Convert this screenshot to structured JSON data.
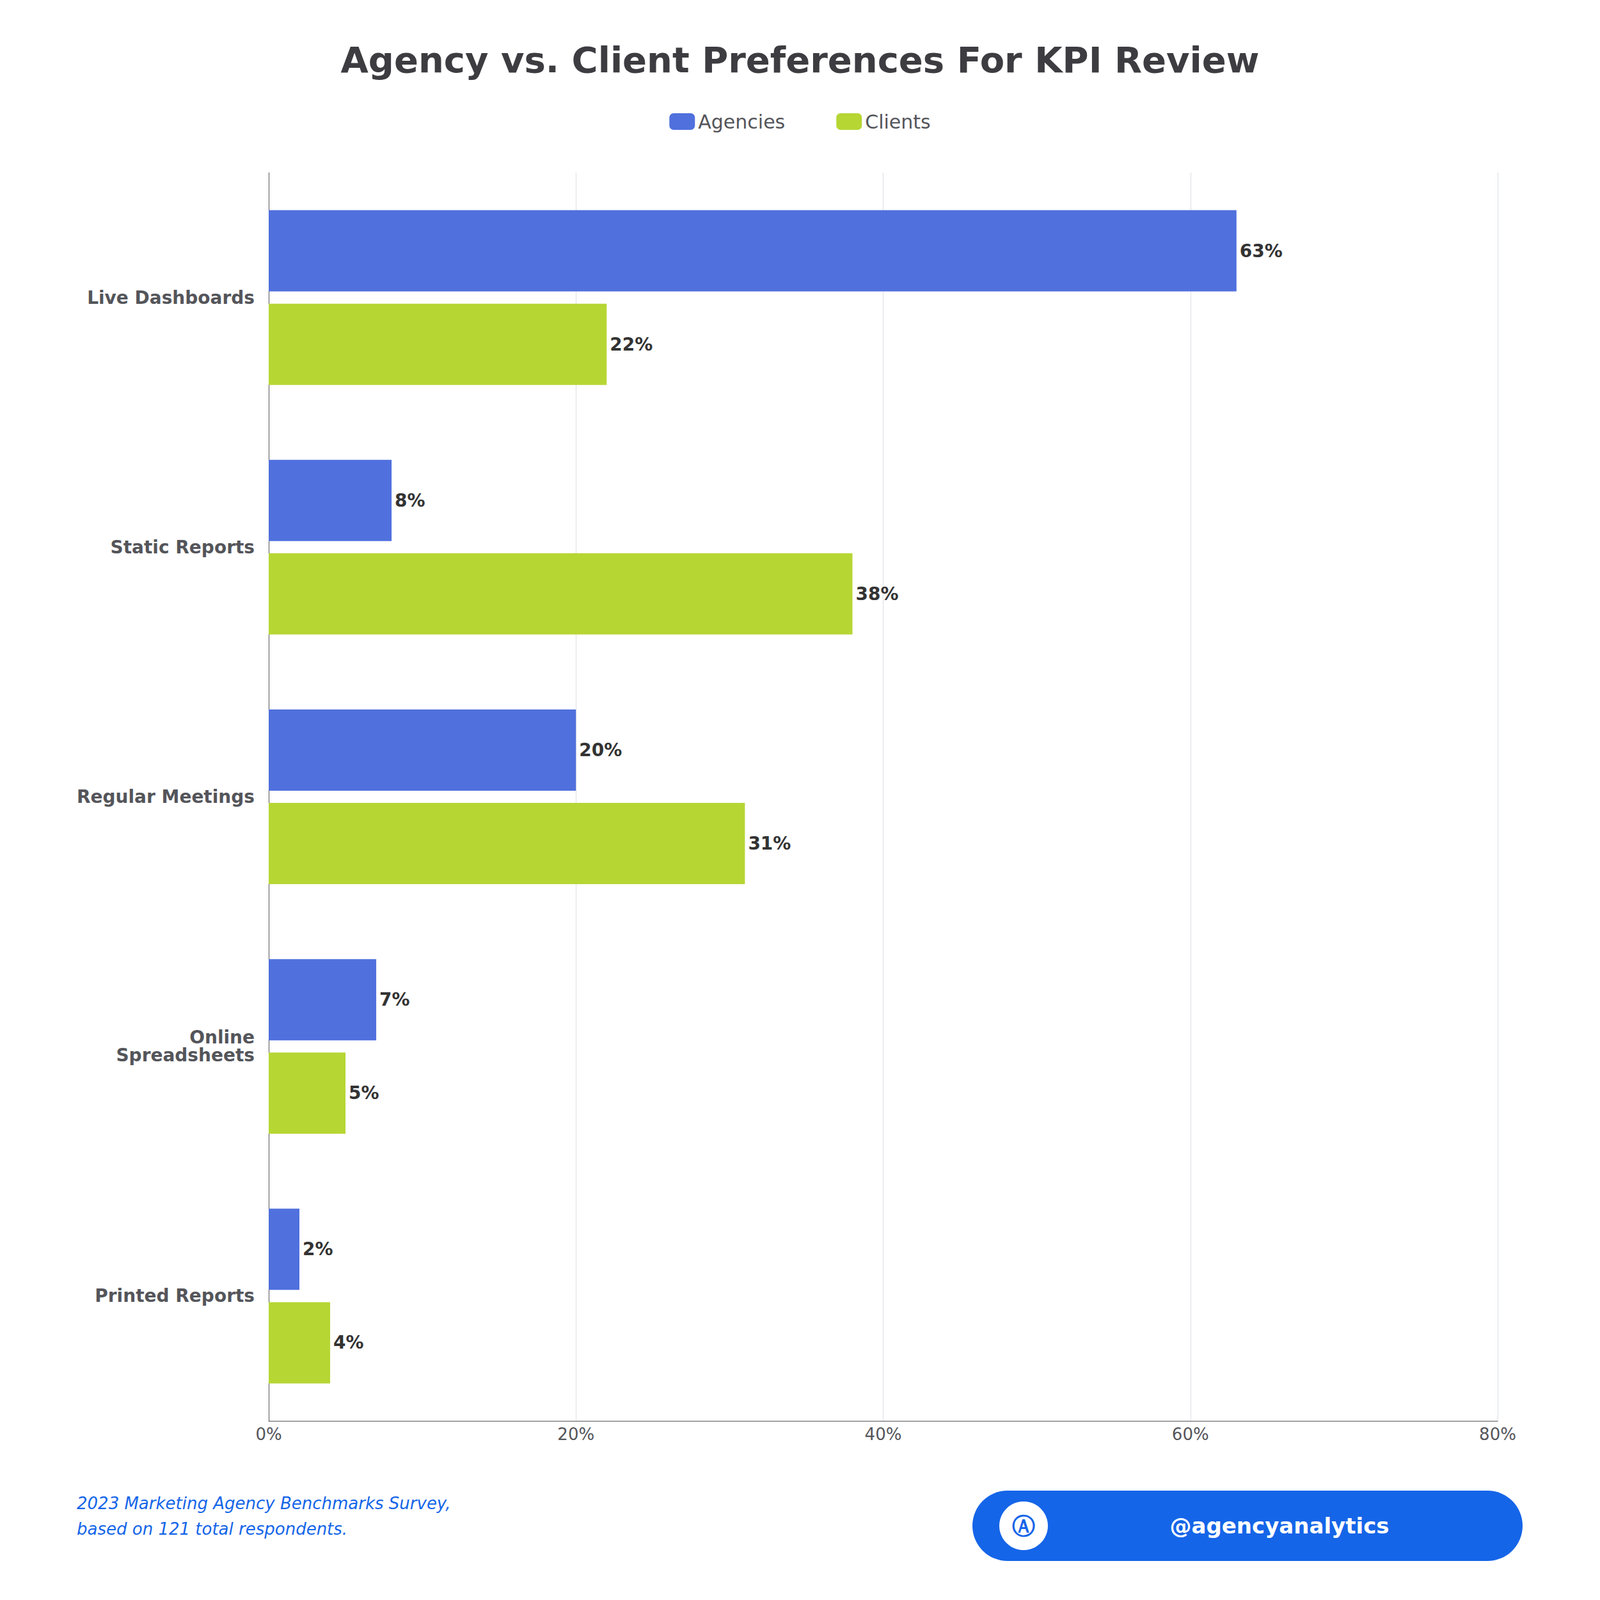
{
  "chart_data": {
    "type": "bar",
    "orientation": "horizontal",
    "title": "Agency vs. Client Preferences For KPI Review",
    "categories": [
      "Live Dashboards",
      "Static Reports",
      "Regular Meetings",
      "Online\nSpreadsheets",
      "Printed Reports"
    ],
    "series": [
      {
        "name": "Agencies",
        "values": [
          63,
          8,
          20,
          7,
          2
        ],
        "value_labels": [
          "63%",
          "8%",
          "20%",
          "7%",
          "2%"
        ]
      },
      {
        "name": "Clients",
        "values": [
          22,
          38,
          31,
          5,
          4
        ],
        "value_labels": [
          "22%",
          "38%",
          "31%",
          "5%",
          "4%"
        ]
      }
    ],
    "xlim": [
      0,
      80
    ],
    "xticks": [
      {
        "value": 0,
        "label": "0%"
      },
      {
        "value": 20,
        "label": "20%"
      },
      {
        "value": 40,
        "label": "40%"
      },
      {
        "value": 60,
        "label": "60%"
      },
      {
        "value": 80,
        "label": "80%"
      }
    ],
    "grid": true,
    "legend": "top",
    "data_labels": true,
    "annotations": [
      "2023 Marketing Agency Benchmarks Survey,\nbased on 121 total respondents.",
      "@agencyanalytics",
      "Ⓐ"
    ]
  }
}
